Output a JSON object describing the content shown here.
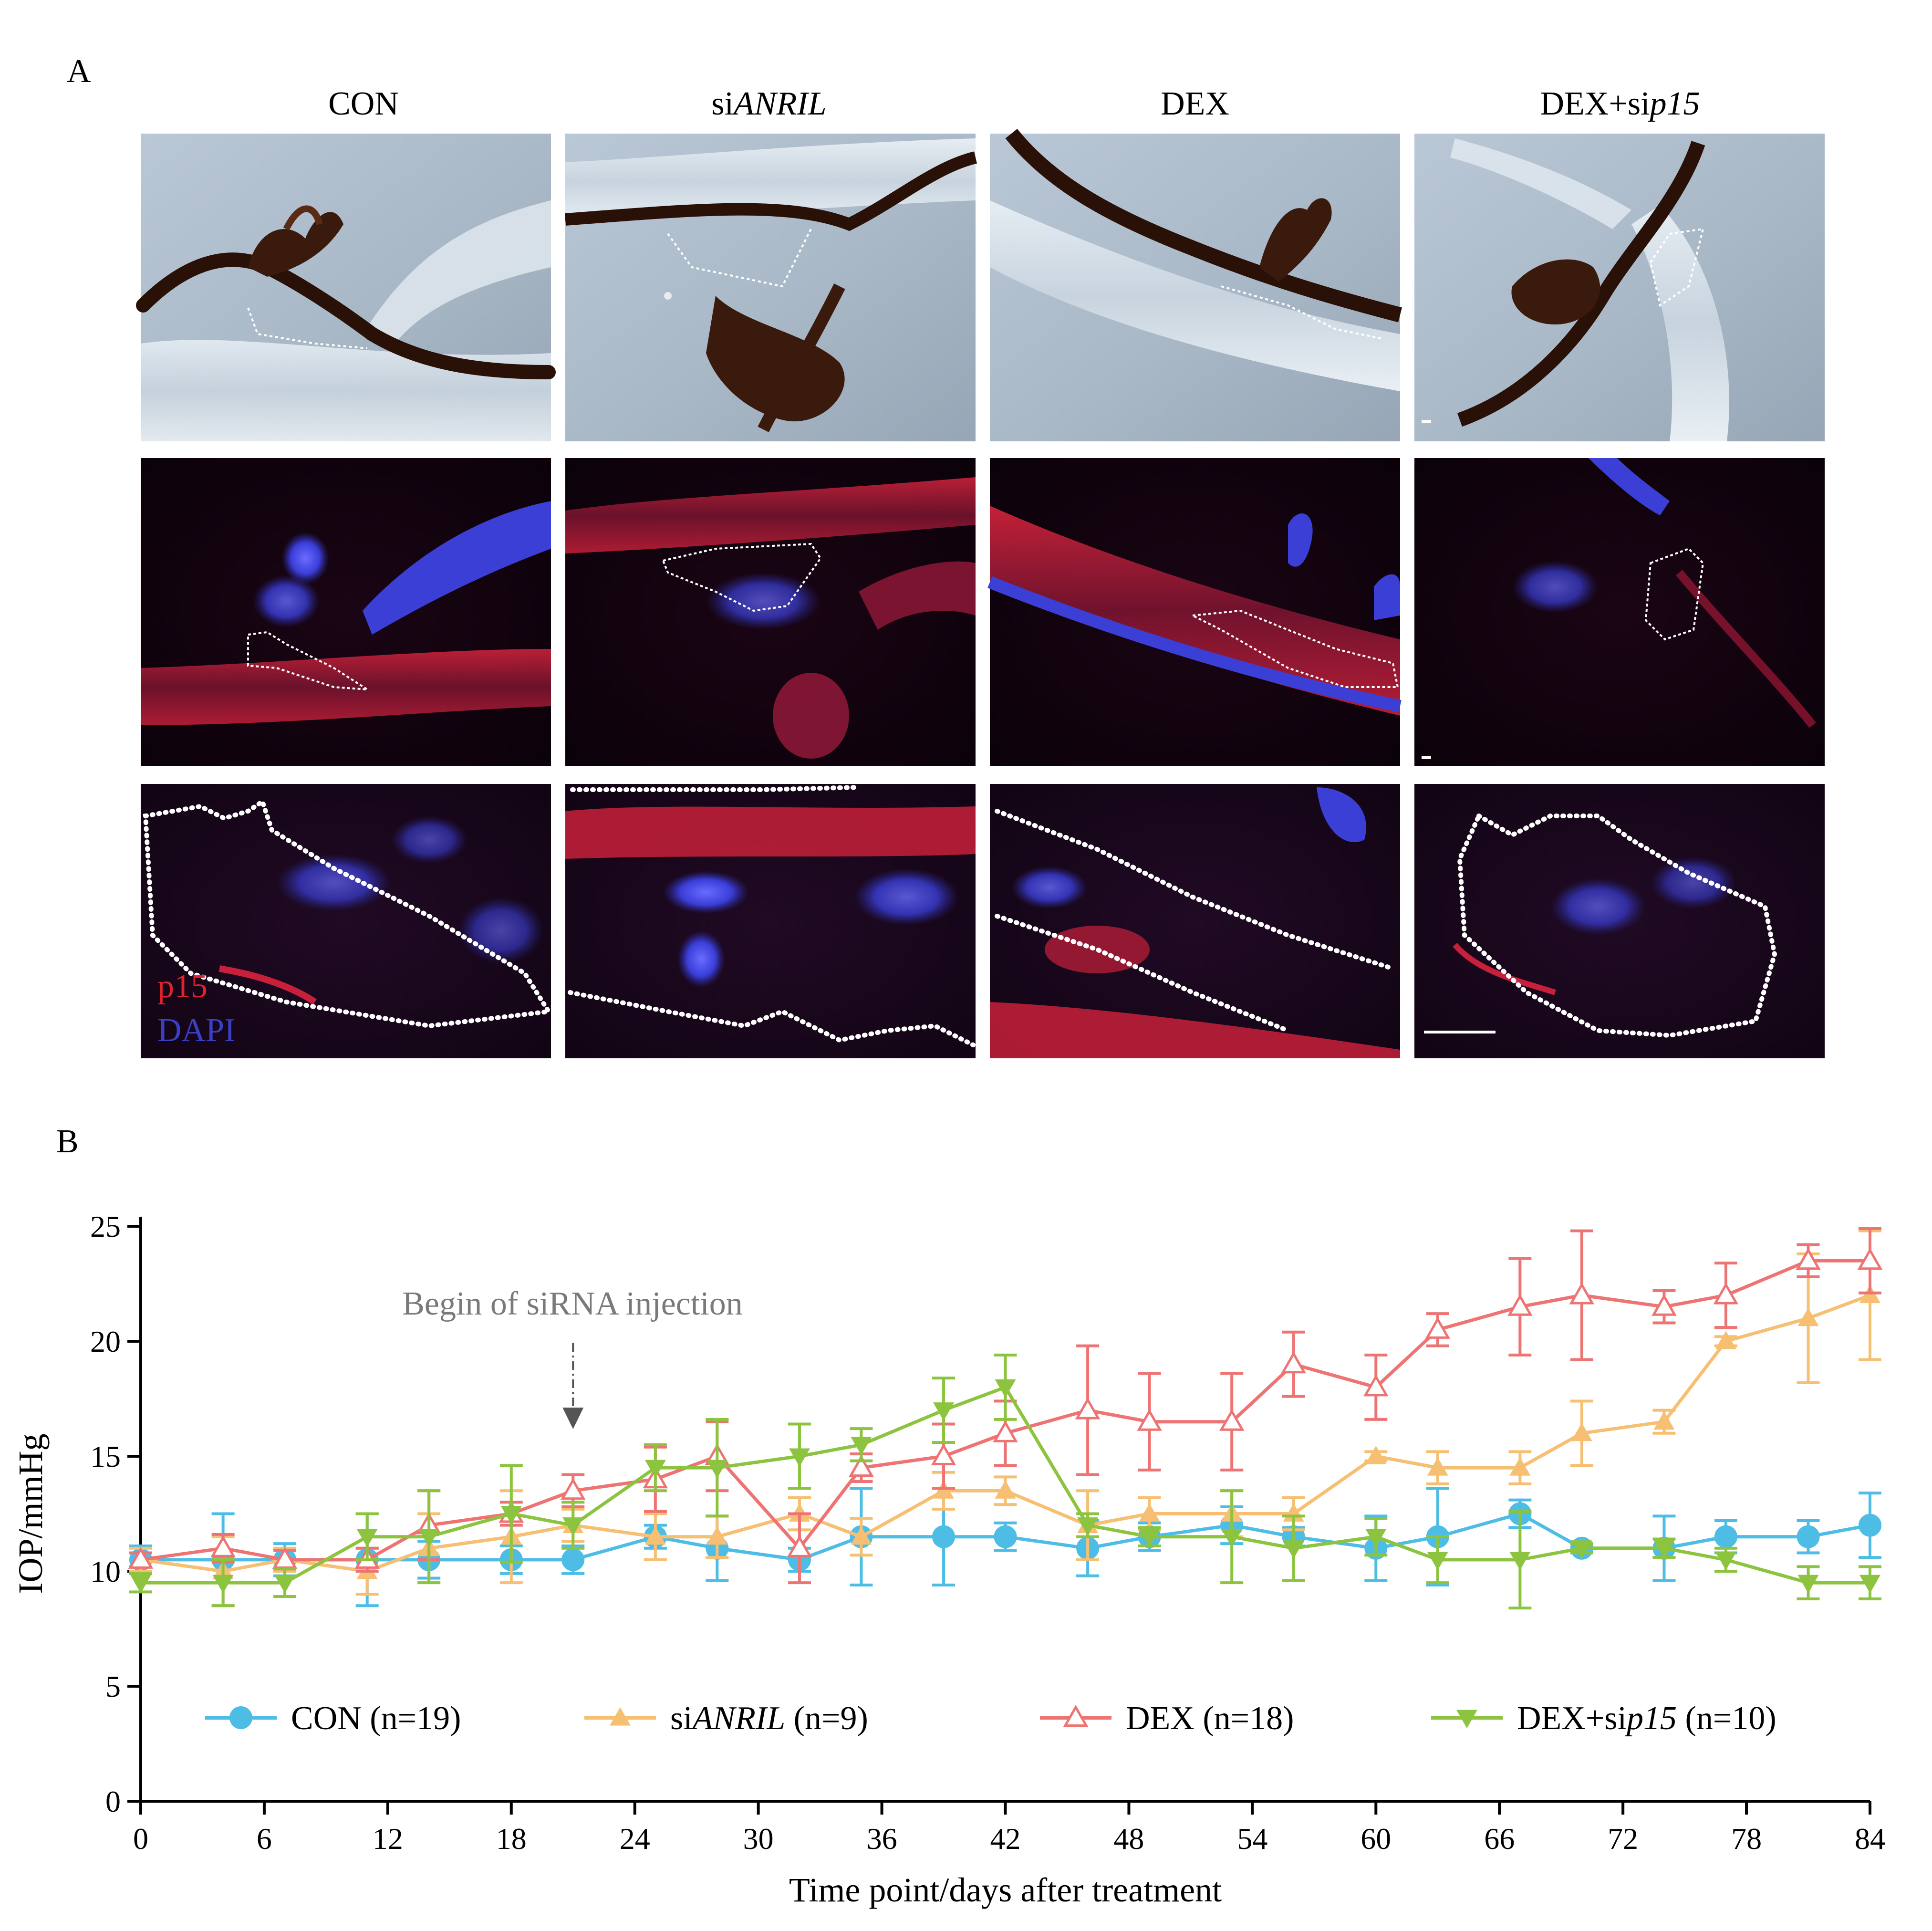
{
  "panel_a": {
    "label": "A",
    "columns": [
      {
        "prefix": "CON",
        "italic": ""
      },
      {
        "prefix": "si",
        "italic": "ANRIL"
      },
      {
        "prefix": "DEX",
        "italic": ""
      },
      {
        "prefix": "DEX+si",
        "italic": "p15"
      }
    ],
    "stain_p15": "p15",
    "stain_dapi": "DAPI"
  },
  "chart_data": {
    "type": "line",
    "panel_label": "B",
    "title": "",
    "xlabel": "Time point/days after treatment",
    "ylabel": "IOP/mmHg",
    "xlim": [
      0,
      84
    ],
    "ylim": [
      0,
      25
    ],
    "xticks": [
      0,
      6,
      12,
      18,
      24,
      30,
      36,
      42,
      48,
      54,
      60,
      66,
      72,
      78,
      84
    ],
    "yticks": [
      0,
      5,
      10,
      15,
      20,
      25
    ],
    "annotation": "Begin of siRNA injection",
    "annotation_x": 21,
    "series": [
      {
        "name": "CON (n=19)",
        "prefix": "CON (n=19)",
        "italic": "",
        "suffix": "",
        "color": "#4ebde6",
        "marker": "circle",
        "x": [
          0,
          4,
          7,
          11,
          14,
          18,
          21,
          25,
          28,
          32,
          35,
          39,
          42,
          46,
          49,
          53,
          56,
          60,
          63,
          67,
          70,
          74,
          77,
          81,
          84
        ],
        "y": [
          10.5,
          10.5,
          10.5,
          10.5,
          10.5,
          10.5,
          10.5,
          11.5,
          11,
          10.5,
          11.5,
          11.5,
          11.5,
          11,
          11.5,
          12,
          11.5,
          11,
          11.5,
          12.5,
          11,
          11,
          11.5,
          11.5,
          12
        ],
        "err": [
          0.6,
          2.0,
          0.7,
          2.0,
          0.8,
          0.6,
          0.6,
          0.5,
          1.4,
          0.5,
          2.1,
          2.1,
          0.6,
          1.2,
          0.6,
          0.8,
          0.4,
          1.4,
          2.1,
          0.6,
          0.2,
          1.4,
          0.7,
          0.7,
          1.4
        ]
      },
      {
        "name": "siANRIL (n=9)",
        "prefix": "si",
        "italic": "ANRIL",
        "suffix": " (n=9)",
        "color": "#f6bf72",
        "marker": "triangle-up",
        "x": [
          0,
          4,
          7,
          11,
          14,
          18,
          21,
          25,
          28,
          32,
          35,
          39,
          42,
          46,
          49,
          53,
          56,
          60,
          63,
          67,
          70,
          74,
          77,
          81,
          84
        ],
        "y": [
          10.5,
          10,
          10.5,
          10,
          11,
          11.5,
          12,
          11.5,
          11.5,
          12.5,
          11.5,
          13.5,
          13.5,
          12,
          12.5,
          12.5,
          12.5,
          15,
          14.5,
          14.5,
          16,
          16.5,
          20,
          21,
          22
        ],
        "err": [
          0.5,
          1.5,
          0.5,
          1.0,
          1.5,
          2.0,
          0.7,
          1.0,
          0.9,
          0.7,
          0.8,
          0.8,
          0.6,
          1.5,
          0.7,
          1.0,
          0.7,
          0.2,
          0.7,
          0.7,
          1.4,
          0.5,
          0.2,
          2.8,
          2.8
        ]
      },
      {
        "name": "DEX (n=18)",
        "prefix": "DEX (n=18)",
        "italic": "",
        "suffix": "",
        "color": "#ee7474",
        "marker": "triangle-up-open",
        "x": [
          0,
          4,
          7,
          11,
          14,
          18,
          21,
          25,
          28,
          32,
          35,
          39,
          42,
          46,
          49,
          53,
          56,
          60,
          63,
          67,
          70,
          74,
          77,
          81,
          84
        ],
        "y": [
          10.5,
          11,
          10.5,
          10.5,
          12,
          12.5,
          13.5,
          14,
          15,
          11,
          14.5,
          15,
          16,
          17,
          16.5,
          16.5,
          19,
          18,
          20.5,
          21.5,
          22,
          21.5,
          22,
          23.5,
          23.5
        ],
        "err": [
          0.3,
          0.6,
          0.4,
          0.5,
          1.5,
          0.5,
          0.7,
          1.4,
          1.5,
          1.5,
          0.6,
          1.4,
          1.4,
          2.8,
          2.1,
          2.1,
          1.4,
          1.4,
          0.7,
          2.1,
          2.8,
          0.7,
          1.4,
          0.7,
          1.4
        ]
      },
      {
        "name": "DEX+sip15 (n=10)",
        "prefix": "DEX+si",
        "italic": "p15",
        "suffix": " (n=10)",
        "color": "#8cc43f",
        "marker": "triangle-down",
        "x": [
          0,
          4,
          7,
          11,
          14,
          18,
          21,
          25,
          28,
          32,
          35,
          39,
          42,
          46,
          49,
          53,
          56,
          60,
          63,
          67,
          70,
          74,
          77,
          81,
          84
        ],
        "y": [
          9.5,
          9.5,
          9.5,
          11.5,
          11.5,
          12.5,
          12,
          14.5,
          14.5,
          15,
          15.5,
          17,
          18,
          12,
          11.5,
          11.5,
          11,
          11.5,
          10.5,
          10.5,
          11,
          11,
          10.5,
          9.5,
          9.5
        ],
        "err": [
          0.4,
          1.0,
          0.6,
          1.0,
          2.0,
          2.1,
          1.0,
          1.0,
          2.1,
          1.4,
          0.7,
          1.4,
          1.4,
          0.5,
          0.4,
          2.0,
          1.4,
          0.8,
          1.0,
          2.1,
          0.2,
          0.4,
          0.5,
          0.7,
          0.7
        ]
      }
    ]
  }
}
